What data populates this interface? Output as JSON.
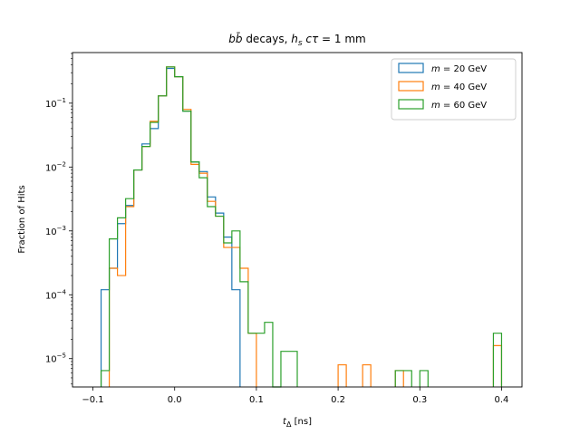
{
  "chart_data": {
    "type": "histogram-step",
    "title": "bb̄ decays, hs cτ = 1 mm",
    "xlabel": "tΔ [ns]",
    "ylabel": "Fraction of Hits",
    "xlim": [
      -0.125,
      0.425
    ],
    "ylim": [
      3.6e-06,
      0.62
    ],
    "yscale": "log",
    "grid": false,
    "legend_position": "top-right",
    "bin_width": 0.01,
    "x_ticks": [
      -0.1,
      0.0,
      0.1,
      0.2,
      0.3,
      0.4
    ],
    "x_tick_labels": [
      "−0.1",
      "0.0",
      "0.1",
      "0.2",
      "0.3",
      "0.4"
    ],
    "y_ticks": [
      1e-05,
      0.0001,
      0.001,
      0.01,
      0.1
    ],
    "series": [
      {
        "name": "m = 20 GeV",
        "label_math": "m",
        "label_rest": " = 20 GeV",
        "color": "#1f77b4",
        "bins": [
          [
            -0.09,
            0.00012
          ],
          [
            -0.08,
            0.00026
          ],
          [
            -0.07,
            0.0013
          ],
          [
            -0.06,
            0.0025
          ],
          [
            -0.05,
            0.009
          ],
          [
            -0.04,
            0.023
          ],
          [
            -0.03,
            0.04
          ],
          [
            -0.02,
            0.13
          ],
          [
            -0.01,
            0.35
          ],
          [
            0.0,
            0.26
          ],
          [
            0.01,
            0.075
          ],
          [
            0.02,
            0.012
          ],
          [
            0.03,
            0.0085
          ],
          [
            0.04,
            0.0034
          ],
          [
            0.05,
            0.0019
          ],
          [
            0.06,
            0.0008
          ],
          [
            0.07,
            0.00012
          ]
        ]
      },
      {
        "name": "m = 40 GeV",
        "label_math": "m",
        "label_rest": " = 40 GeV",
        "color": "#ff7f0e",
        "bins": [
          [
            -0.08,
            0.00026
          ],
          [
            -0.07,
            0.0002
          ],
          [
            -0.06,
            0.0024
          ],
          [
            -0.05,
            0.009
          ],
          [
            -0.04,
            0.021
          ],
          [
            -0.03,
            0.052
          ],
          [
            -0.02,
            0.13
          ],
          [
            -0.01,
            0.37
          ],
          [
            0.0,
            0.26
          ],
          [
            0.01,
            0.08
          ],
          [
            0.02,
            0.011
          ],
          [
            0.03,
            0.008
          ],
          [
            0.04,
            0.0029
          ],
          [
            0.05,
            0.0017
          ],
          [
            0.06,
            0.00055
          ],
          [
            0.07,
            0.00055
          ],
          [
            0.08,
            0.00026
          ],
          [
            0.09,
            2.5e-05
          ],
          [
            0.2,
            8e-06
          ],
          [
            0.23,
            8e-06
          ],
          [
            0.27,
            6.5e-06
          ],
          [
            0.39,
            1.6e-05
          ]
        ]
      },
      {
        "name": "m = 60 GeV",
        "label_math": "m",
        "label_rest": " = 60 GeV",
        "color": "#2ca02c",
        "bins": [
          [
            -0.09,
            6.5e-06
          ],
          [
            -0.08,
            0.00075
          ],
          [
            -0.07,
            0.0016
          ],
          [
            -0.06,
            0.0032
          ],
          [
            -0.05,
            0.009
          ],
          [
            -0.04,
            0.021
          ],
          [
            -0.03,
            0.05
          ],
          [
            -0.02,
            0.13
          ],
          [
            -0.01,
            0.37
          ],
          [
            0.0,
            0.26
          ],
          [
            0.01,
            0.075
          ],
          [
            0.02,
            0.012
          ],
          [
            0.03,
            0.0068
          ],
          [
            0.04,
            0.0024
          ],
          [
            0.05,
            0.0017
          ],
          [
            0.06,
            0.00065
          ],
          [
            0.07,
            0.001
          ],
          [
            0.08,
            0.00016
          ],
          [
            0.09,
            2.5e-05
          ],
          [
            0.1,
            2.5e-05
          ],
          [
            0.11,
            3.7e-05
          ],
          [
            0.12,
            0
          ],
          [
            0.13,
            1.3e-05
          ],
          [
            0.14,
            1.3e-05
          ],
          [
            0.27,
            6.5e-06
          ],
          [
            0.28,
            6.5e-06
          ],
          [
            0.3,
            6.5e-06
          ],
          [
            0.39,
            2.5e-05
          ]
        ]
      }
    ]
  }
}
